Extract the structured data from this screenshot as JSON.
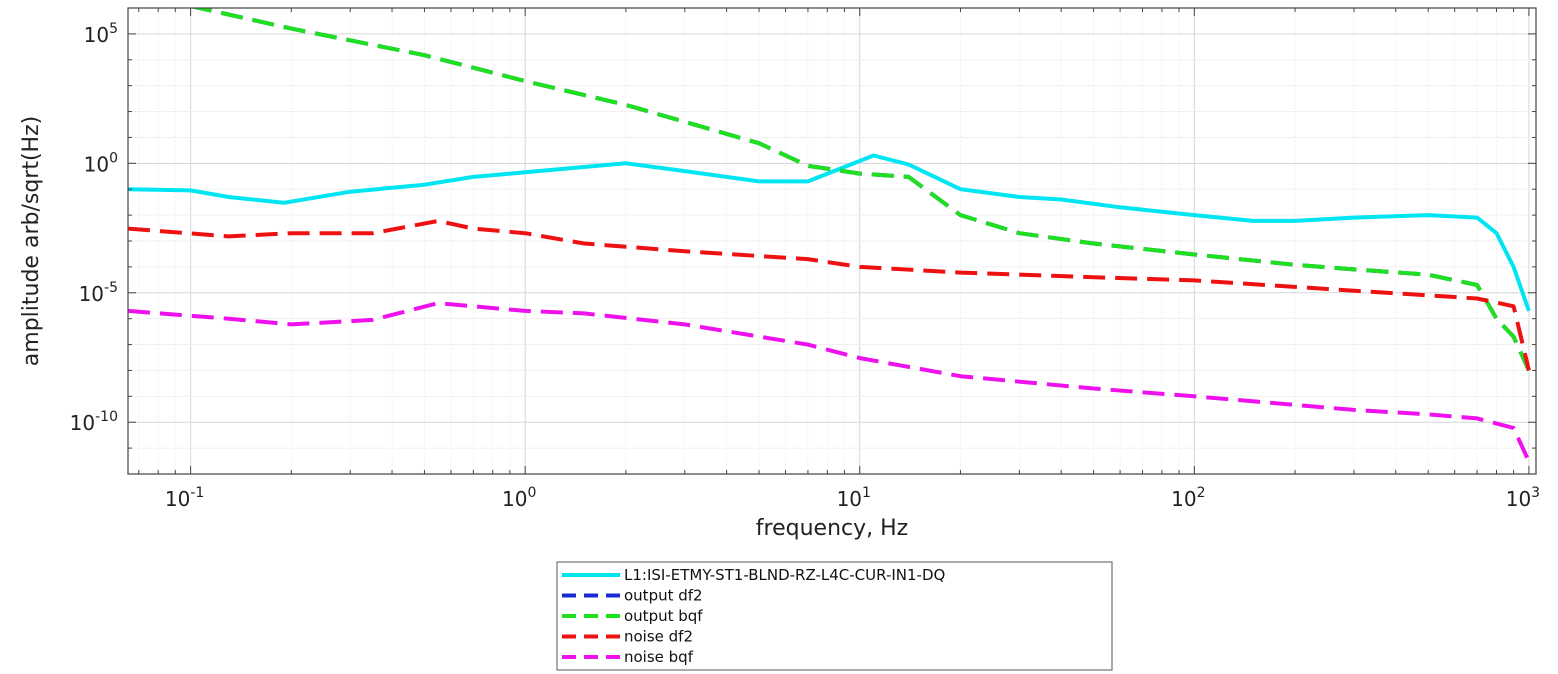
{
  "chart_data": {
    "type": "line",
    "xlabel": "frequency, Hz",
    "ylabel": "amplitude arb/sqrt(Hz)",
    "xscale": "log",
    "yscale": "log",
    "xlim": [
      0.065,
      1050
    ],
    "ylim": [
      1e-12,
      1000000.0
    ],
    "grid": true,
    "legend_position": "bottom-center",
    "x_ticks": [
      {
        "base": "10",
        "exp": "-1"
      },
      {
        "base": "10",
        "exp": "0"
      },
      {
        "base": "10",
        "exp": "1"
      },
      {
        "base": "10",
        "exp": "2"
      },
      {
        "base": "10",
        "exp": "3"
      }
    ],
    "y_ticks": [
      {
        "base": "10",
        "exp": "5"
      },
      {
        "base": "10",
        "exp": "0"
      },
      {
        "base": "10",
        "exp": "-5"
      },
      {
        "base": "10",
        "exp": "-10"
      }
    ],
    "series": [
      {
        "name": "L1:ISI-ETMY-ST1-BLND-RZ-L4C-CUR-IN1-DQ",
        "color": "#00e5f2",
        "style": "solid",
        "x": [
          0.065,
          0.1,
          0.13,
          0.19,
          0.3,
          0.5,
          0.7,
          1.0,
          2.0,
          3.0,
          5.0,
          7.0,
          11.0,
          14.0,
          20.0,
          30.0,
          40.0,
          60.0,
          100.0,
          150.0,
          200.0,
          300.0,
          500.0,
          700.0,
          800.0,
          900.0,
          1000.0
        ],
        "y": [
          0.1,
          0.09,
          0.05,
          0.03,
          0.08,
          0.15,
          0.3,
          0.45,
          1.0,
          0.5,
          0.2,
          0.2,
          2.0,
          0.9,
          0.1,
          0.05,
          0.04,
          0.02,
          0.01,
          0.006,
          0.006,
          0.008,
          0.01,
          0.008,
          0.002,
          0.0001,
          2e-06
        ]
      },
      {
        "name": "output df2",
        "color": "#1a2ad6",
        "style": "dashed",
        "x": [
          0.065,
          0.1,
          0.2,
          0.5,
          1.0,
          2.0,
          5.0,
          7.0,
          10.0,
          14.0,
          20.0,
          30.0,
          50.0,
          100.0,
          200.0,
          300.0,
          500.0,
          700.0,
          800.0,
          900.0,
          1000.0
        ],
        "y": [
          5000000.0,
          1200000.0,
          160000.0,
          15000.0,
          1500,
          180,
          6,
          0.8,
          0.4,
          0.3,
          0.01,
          0.002,
          0.0008,
          0.0003,
          0.00012,
          8e-05,
          5e-05,
          2e-05,
          1e-06,
          2e-07,
          1e-08
        ]
      },
      {
        "name": "output bqf",
        "color": "#1fe01f",
        "style": "dashed",
        "x": [
          0.065,
          0.1,
          0.2,
          0.5,
          1.0,
          2.0,
          5.0,
          7.0,
          10.0,
          14.0,
          20.0,
          30.0,
          50.0,
          100.0,
          200.0,
          300.0,
          500.0,
          700.0,
          800.0,
          900.0,
          1000.0
        ],
        "y": [
          5000000.0,
          1200000.0,
          160000.0,
          15000.0,
          1500,
          180,
          6,
          0.8,
          0.4,
          0.3,
          0.01,
          0.002,
          0.0008,
          0.0003,
          0.00012,
          8e-05,
          5e-05,
          2e-05,
          1e-06,
          2e-07,
          1e-08
        ]
      },
      {
        "name": "noise df2",
        "color": "#ee1111",
        "style": "dashed",
        "x": [
          0.065,
          0.13,
          0.2,
          0.35,
          0.55,
          0.7,
          1.0,
          1.5,
          3.0,
          7.0,
          10.0,
          20.0,
          50.0,
          100.0,
          300.0,
          500.0,
          700.0,
          900.0,
          1000.0
        ],
        "y": [
          0.003,
          0.0015,
          0.002,
          0.002,
          0.006,
          0.003,
          0.002,
          0.0008,
          0.0004,
          0.0002,
          0.0001,
          6e-05,
          4e-05,
          3e-05,
          1.2e-05,
          8e-06,
          6e-06,
          3e-06,
          1e-08
        ]
      },
      {
        "name": "noise bqf",
        "color": "#ee11ee",
        "style": "dashed",
        "x": [
          0.065,
          0.13,
          0.2,
          0.35,
          0.55,
          0.7,
          1.0,
          1.5,
          3.0,
          7.0,
          10.0,
          20.0,
          50.0,
          100.0,
          300.0,
          500.0,
          700.0,
          900.0,
          1000.0
        ],
        "y": [
          2e-06,
          1e-06,
          6e-07,
          9e-07,
          4e-06,
          3e-06,
          2e-06,
          1.6e-06,
          6e-07,
          1e-07,
          3e-08,
          6e-09,
          2e-09,
          1e-09,
          3e-10,
          2e-10,
          1.4e-10,
          6e-11,
          3e-12
        ]
      }
    ]
  }
}
